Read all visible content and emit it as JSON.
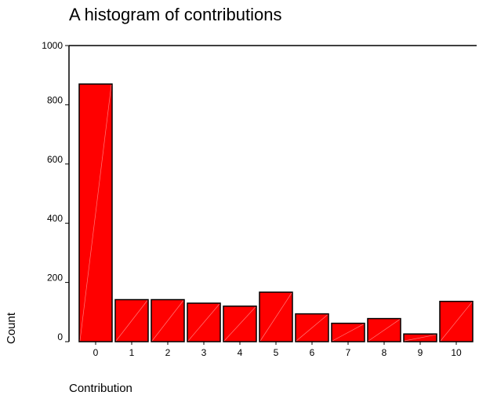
{
  "chart_data": {
    "type": "bar",
    "title": "A histogram of contributions",
    "xlabel": "Contribution",
    "ylabel": "Count",
    "categories": [
      "0",
      "1",
      "2",
      "3",
      "4",
      "5",
      "6",
      "7",
      "8",
      "9",
      "10"
    ],
    "values": [
      870,
      142,
      142,
      130,
      120,
      167,
      94,
      62,
      78,
      26,
      136
    ],
    "ylim": [
      0,
      1000
    ],
    "yticks": [
      0,
      200,
      400,
      600,
      800,
      1000
    ],
    "grid": false,
    "legend": "none",
    "bar_color": "#ff0000",
    "bar_edge_color": "#000000"
  }
}
